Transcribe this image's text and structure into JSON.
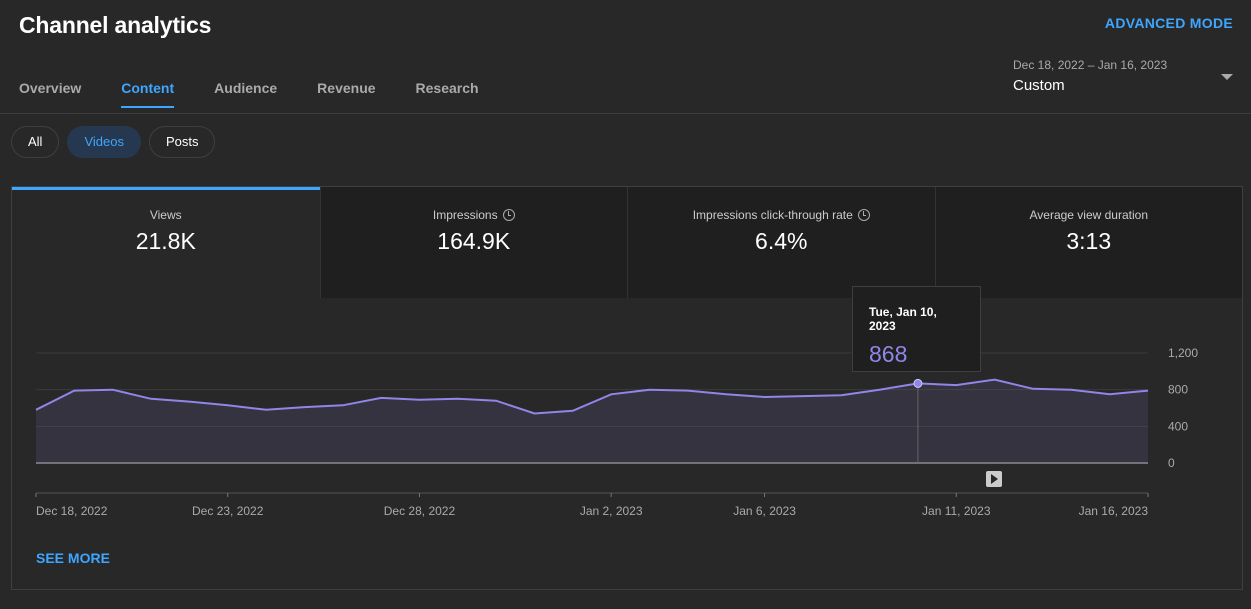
{
  "header": {
    "title": "Channel analytics",
    "advanced_mode": "ADVANCED MODE"
  },
  "tabs": [
    {
      "label": "Overview"
    },
    {
      "label": "Content"
    },
    {
      "label": "Audience"
    },
    {
      "label": "Revenue"
    },
    {
      "label": "Research"
    }
  ],
  "date_range": {
    "dates": "Dec 18, 2022 – Jan 16, 2023",
    "label": "Custom"
  },
  "filters": [
    {
      "label": "All"
    },
    {
      "label": "Videos"
    },
    {
      "label": "Posts"
    }
  ],
  "metrics": [
    {
      "label": "Views",
      "value": "21.8K"
    },
    {
      "label": "Impressions",
      "value": "164.9K"
    },
    {
      "label": "Impressions click-through rate",
      "value": "6.4%"
    },
    {
      "label": "Average view duration",
      "value": "3:13"
    }
  ],
  "tooltip": {
    "date": "Tue, Jan 10, 2023",
    "value": "868"
  },
  "see_more": "SEE MORE",
  "colors": {
    "accent": "#3ea6ff",
    "series": "#8f86e8"
  },
  "chart_data": {
    "type": "area",
    "y_ticks": [
      "1,200",
      "800",
      "400",
      "0"
    ],
    "ylim": [
      0,
      1200
    ],
    "x_tick_labels": [
      "Dec 18, 2022",
      "Dec 23, 2022",
      "Dec 28, 2022",
      "Jan 2, 2023",
      "Jan 6, 2023",
      "Jan 11, 2023",
      "Jan 16, 2023"
    ],
    "x_tick_indices": [
      0,
      5,
      10,
      15,
      19,
      24,
      29
    ],
    "series": [
      {
        "values": [
          580,
          790,
          800,
          700,
          670,
          630,
          580,
          610,
          630,
          710,
          690,
          700,
          680,
          540,
          570,
          750,
          800,
          790,
          750,
          720,
          730,
          740,
          800,
          868,
          850,
          910,
          810,
          800,
          750,
          790
        ]
      }
    ],
    "highlight_index": 23
  }
}
